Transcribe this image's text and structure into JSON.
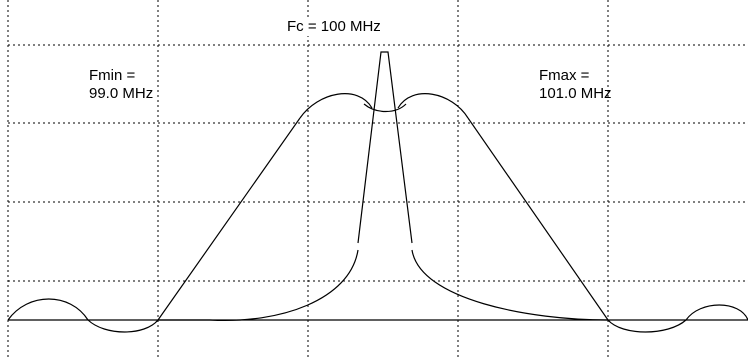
{
  "labels": {
    "center": "Fc = 100 MHz",
    "fmin_line1": "Fmin =",
    "fmin_line2": "99.0 MHz",
    "fmax_line1": "Fmax =",
    "fmax_line2": "101.0 MHz"
  },
  "colors": {
    "background": "#ffffff",
    "grid": "#000000",
    "trace": "#000000"
  }
}
